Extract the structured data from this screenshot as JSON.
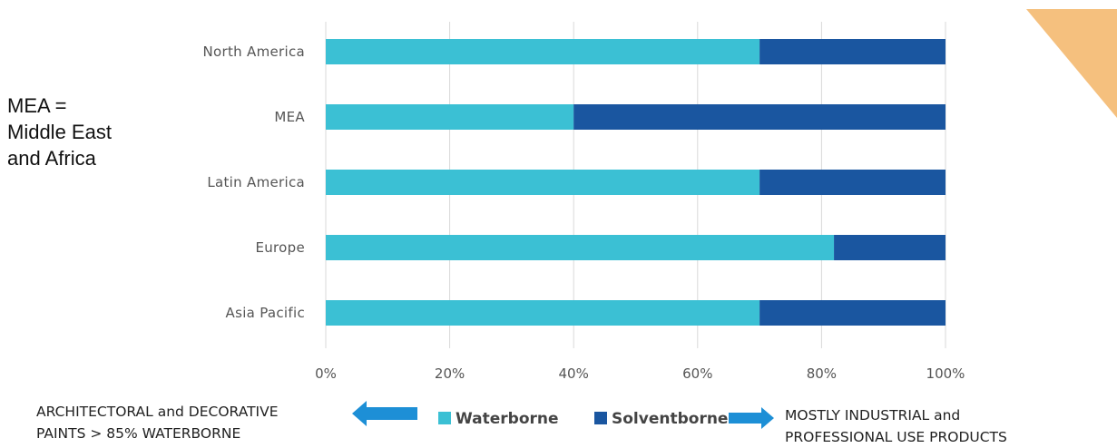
{
  "side_note": {
    "lines": [
      "MEA =",
      "Middle East",
      "and Africa"
    ]
  },
  "notes": {
    "left": [
      "ARCHITECTORAL and DECORATIVE",
      "PAINTS > 85% WATERBORNE"
    ],
    "right": [
      "MOSTLY INDUSTRIAL and",
      "PROFESSIONAL USE PRODUCTS"
    ]
  },
  "colors": {
    "waterborne": "#3bc0d4",
    "solventborne": "#1a56a0",
    "corner_triangle": "#f5c07e",
    "arrow": "#1d8fd6"
  },
  "icons": {
    "left_arrow": "arrow-left-icon",
    "right_arrow": "arrow-right-icon",
    "corner": "triangle-decoration-icon"
  },
  "chart_data": {
    "type": "bar",
    "orientation": "horizontal",
    "stacked": "percent",
    "categories": [
      "North America",
      "MEA",
      "Latin America",
      "Europe",
      "Asia Pacific"
    ],
    "series": [
      {
        "name": "Waterborne",
        "values": [
          70,
          40,
          70,
          82,
          70
        ]
      },
      {
        "name": "Solventborne",
        "values": [
          30,
          60,
          30,
          18,
          30
        ]
      }
    ],
    "xlim": [
      0,
      100
    ],
    "xticks": [
      "0%",
      "20%",
      "40%",
      "60%",
      "80%",
      "100%"
    ],
    "grid": true,
    "legend_position": "bottom"
  }
}
